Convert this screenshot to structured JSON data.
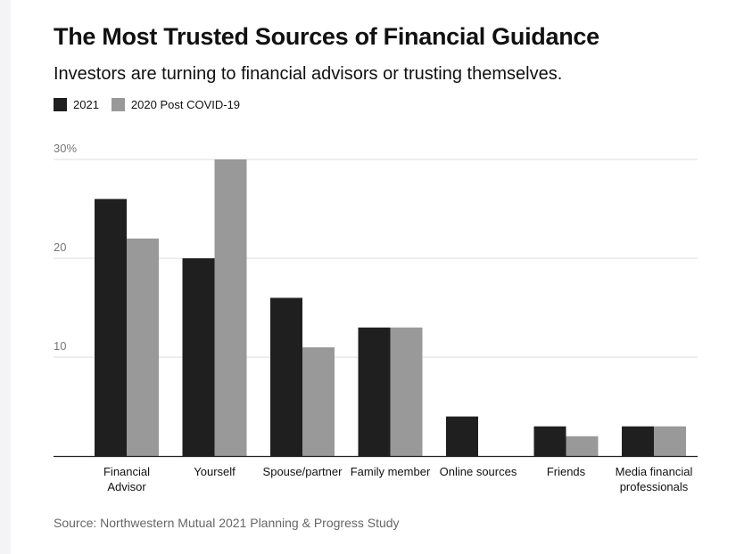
{
  "header": {
    "title": "The Most Trusted Sources of Financial Guidance",
    "subtitle": "Investors are turning to financial advisors or trusting themselves."
  },
  "legend": {
    "items": [
      {
        "label": "2021",
        "color": "#1f1f1f"
      },
      {
        "label": "2020 Post COVID-19",
        "color": "#999999"
      }
    ]
  },
  "footer": {
    "source": "Source: Northwestern Mutual 2021 Planning & Progress Study"
  },
  "chart_data": {
    "type": "bar",
    "title": "The Most Trusted Sources of Financial Guidance",
    "subtitle": "Investors are turning to financial advisors or trusting themselves.",
    "categories": [
      [
        "Financial",
        "Advisor"
      ],
      [
        "Yourself"
      ],
      [
        "Spouse/partner"
      ],
      [
        "Family member"
      ],
      [
        "Online sources"
      ],
      [
        "Friends"
      ],
      [
        "Media financial",
        "professionals"
      ]
    ],
    "series": [
      {
        "name": "2021",
        "color": "#1f1f1f",
        "values": [
          26,
          20,
          16,
          13,
          4,
          3,
          3
        ]
      },
      {
        "name": "2020 Post COVID-19",
        "color": "#999999",
        "values": [
          22,
          30,
          11,
          13,
          0,
          2,
          3
        ]
      }
    ],
    "yticks": [
      {
        "value": 10,
        "label": "10"
      },
      {
        "value": 20,
        "label": "20"
      },
      {
        "value": 30,
        "label": "30%"
      }
    ],
    "ylim": [
      0,
      30
    ],
    "xlabel": "",
    "ylabel": "",
    "grid": true,
    "legend_position": "top-left"
  }
}
